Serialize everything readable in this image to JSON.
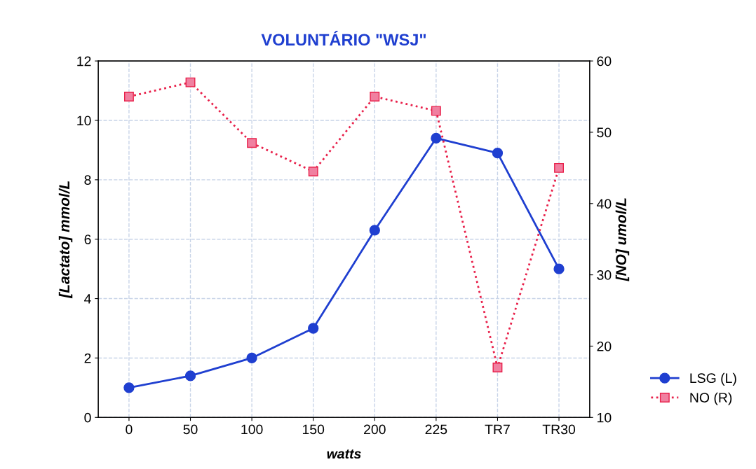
{
  "chart_data": {
    "type": "line",
    "title": "VOLUNTÁRIO \"WSJ\"",
    "xlabel": "watts",
    "ylabel": "[Lactato] mmol/L",
    "y2label": "[NO] umol/L",
    "categories": [
      "0",
      "50",
      "100",
      "150",
      "200",
      "225",
      "TR7",
      "TR30"
    ],
    "series": [
      {
        "name": "LSG (L)",
        "color": "#1f3fd0",
        "marker": "circle",
        "line_style": "solid",
        "values": [
          1.0,
          1.4,
          2.0,
          3.0,
          6.3,
          9.4,
          8.9,
          5.0
        ]
      },
      {
        "name": "NO (R)",
        "color": "#e8204a",
        "marker": "square",
        "line_style": "dotted",
        "axis": "y2",
        "values": [
          55,
          57,
          48.5,
          44.5,
          55,
          53,
          17,
          45
        ]
      }
    ],
    "ylim": [
      0,
      12
    ],
    "yticks": [
      0,
      2,
      4,
      6,
      8,
      10,
      12
    ],
    "y2lim": [
      10,
      60
    ],
    "y2ticks": [
      10,
      20,
      30,
      40,
      50,
      60
    ],
    "grid": true,
    "legend": "bottom right"
  }
}
